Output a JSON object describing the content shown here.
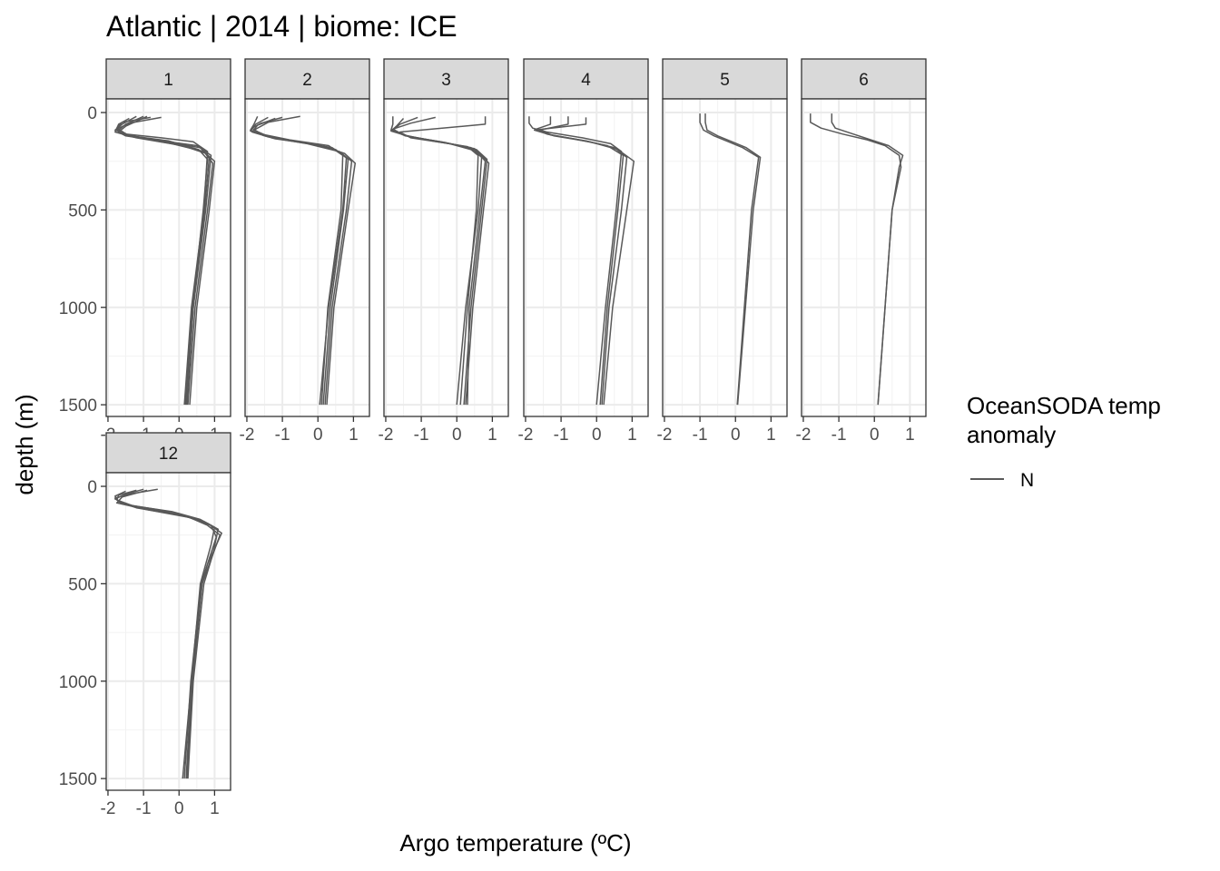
{
  "chart_data": {
    "type": "line",
    "title": "Atlantic | 2014 | biome: ICE",
    "xlabel": "Argo temperature (ºC)",
    "ylabel": "depth (m)",
    "xlim": [
      -2.05,
      1.45
    ],
    "ylim": [
      1560,
      -70
    ],
    "x_ticks": [
      -2,
      -1,
      0,
      1
    ],
    "x_tick_labels": [
      "-2",
      "-1",
      "0",
      "1"
    ],
    "y_ticks": [
      0,
      500,
      1000,
      1500
    ],
    "y_tick_labels": [
      "0",
      "500",
      "1000",
      "1500"
    ],
    "facet_labels": [
      "1",
      "2",
      "3",
      "4",
      "5",
      "6",
      "12"
    ],
    "legend": {
      "title_lines": [
        "OceanSODA temp",
        "anomaly"
      ],
      "entries": [
        "N"
      ],
      "color": "#595959",
      "placement": "right"
    },
    "grid": true,
    "panels": [
      {
        "label": "1",
        "series": [
          {
            "depth": [
              20,
              60,
              90,
              110,
              130,
              150,
              200,
              500,
              1000,
              1500
            ],
            "temp": [
              -1.2,
              -1.6,
              -1.8,
              -1.5,
              -0.5,
              0.4,
              0.8,
              0.7,
              0.35,
              0.15
            ]
          },
          {
            "depth": [
              20,
              60,
              90,
              110,
              140,
              170,
              220,
              500,
              1000,
              1500
            ],
            "temp": [
              -1.0,
              -1.5,
              -1.7,
              -1.6,
              -0.7,
              0.5,
              0.9,
              0.75,
              0.4,
              0.2
            ]
          },
          {
            "depth": [
              25,
              50,
              80,
              120,
              160,
              200,
              260,
              500,
              1000,
              1500
            ],
            "temp": [
              -0.8,
              -1.6,
              -1.75,
              -1.4,
              -0.2,
              0.7,
              0.95,
              0.8,
              0.45,
              0.25
            ]
          },
          {
            "depth": [
              30,
              60,
              100,
              130,
              170,
              210,
              250,
              500,
              1000,
              1500
            ],
            "temp": [
              -1.4,
              -1.7,
              -1.8,
              -1.2,
              0.1,
              0.75,
              1.0,
              0.85,
              0.5,
              0.3
            ]
          },
          {
            "depth": [
              20,
              70,
              100,
              120,
              150,
              180,
              230,
              500,
              1000,
              1500
            ],
            "temp": [
              -0.9,
              -1.5,
              -1.7,
              -1.5,
              -0.4,
              0.6,
              0.85,
              0.72,
              0.4,
              0.22
            ]
          },
          {
            "depth": [
              25,
              55,
              85,
              115,
              145,
              190,
              240,
              500,
              1000,
              1500
            ],
            "temp": [
              -0.5,
              -1.4,
              -1.75,
              -1.55,
              -0.3,
              0.55,
              0.8,
              0.68,
              0.38,
              0.18
            ]
          }
        ]
      },
      {
        "label": "2",
        "series": [
          {
            "depth": [
              20,
              60,
              90,
              120,
              150,
              180,
              230,
              500,
              1000,
              1500
            ],
            "temp": [
              -1.7,
              -1.8,
              -1.9,
              -1.5,
              -0.6,
              0.4,
              0.8,
              0.7,
              0.3,
              0.05
            ]
          },
          {
            "depth": [
              25,
              55,
              80,
              110,
              140,
              170,
              220,
              500,
              1000,
              1500
            ],
            "temp": [
              -1.0,
              -1.6,
              -1.85,
              -1.6,
              -0.8,
              0.3,
              0.7,
              0.65,
              0.28,
              0.1
            ]
          },
          {
            "depth": [
              20,
              50,
              90,
              130,
              160,
              200,
              250,
              500,
              1000,
              1500
            ],
            "temp": [
              -0.5,
              -1.4,
              -1.8,
              -1.3,
              -0.3,
              0.6,
              0.95,
              0.8,
              0.4,
              0.2
            ]
          },
          {
            "depth": [
              30,
              65,
              100,
              135,
              165,
              210,
              260,
              500,
              1000,
              1500
            ],
            "temp": [
              -1.2,
              -1.7,
              -1.85,
              -1.2,
              0.0,
              0.75,
              1.05,
              0.85,
              0.45,
              0.25
            ]
          },
          {
            "depth": [
              25,
              60,
              95,
              125,
              155,
              190,
              240,
              500,
              1000,
              1500
            ],
            "temp": [
              -1.4,
              -1.75,
              -1.9,
              -1.4,
              -0.4,
              0.5,
              0.85,
              0.72,
              0.35,
              0.15
            ]
          }
        ]
      },
      {
        "label": "3",
        "series": [
          {
            "depth": [
              20,
              60,
              90,
              120,
              150,
              180,
              230,
              500,
              1000,
              1500
            ],
            "temp": [
              -1.8,
              -1.8,
              -1.85,
              -1.4,
              -0.5,
              0.4,
              0.7,
              0.6,
              0.25,
              0.0
            ]
          },
          {
            "depth": [
              25,
              55,
              85,
              115,
              145,
              175,
              220,
              500,
              1000,
              1500
            ],
            "temp": [
              -0.6,
              -1.3,
              -1.8,
              -1.5,
              -0.7,
              0.3,
              0.6,
              0.55,
              0.3,
              0.1
            ]
          },
          {
            "depth": [
              20,
              60,
              100,
              130,
              160,
              200,
              260,
              500,
              1000,
              1500
            ],
            "temp": [
              0.8,
              0.8,
              -1.6,
              -1.3,
              -0.2,
              0.6,
              0.9,
              0.75,
              0.45,
              0.25
            ]
          },
          {
            "depth": [
              30,
              70,
              95,
              125,
              155,
              190,
              240,
              500,
              1000,
              1500
            ],
            "temp": [
              -1.5,
              -1.7,
              -1.85,
              -1.3,
              -0.3,
              0.55,
              0.85,
              0.7,
              0.4,
              0.2
            ]
          },
          {
            "depth": [
              25,
              60,
              90,
              120,
              150,
              185,
              250,
              500,
              1000,
              1500
            ],
            "temp": [
              -1.1,
              -1.6,
              -1.8,
              -1.45,
              -0.45,
              0.5,
              0.8,
              0.65,
              0.35,
              0.3
            ]
          }
        ]
      },
      {
        "label": "4",
        "series": [
          {
            "depth": [
              20,
              55,
              80,
              100,
              130,
              160,
              200,
              500,
              1000,
              1500
            ],
            "temp": [
              -1.9,
              -1.9,
              -1.8,
              -1.4,
              -0.4,
              0.4,
              0.7,
              0.55,
              0.25,
              0.0
            ]
          },
          {
            "depth": [
              20,
              60,
              85,
              110,
              140,
              170,
              220,
              500,
              1000,
              1500
            ],
            "temp": [
              -1.3,
              -1.3,
              -1.7,
              -1.4,
              -0.5,
              0.3,
              0.75,
              0.6,
              0.3,
              0.1
            ]
          },
          {
            "depth": [
              20,
              60,
              90,
              120,
              150,
              190,
              250,
              500,
              1000,
              1500
            ],
            "temp": [
              -0.8,
              -0.8,
              -1.6,
              -1.2,
              -0.2,
              0.6,
              1.05,
              0.85,
              0.45,
              0.2
            ]
          },
          {
            "depth": [
              25,
              60,
              90,
              115,
              145,
              180,
              230,
              500,
              1000,
              1500
            ],
            "temp": [
              -0.3,
              -0.3,
              -1.75,
              -1.3,
              -0.3,
              0.5,
              0.85,
              0.7,
              0.35,
              0.15
            ]
          }
        ]
      },
      {
        "label": "5",
        "series": [
          {
            "depth": [
              5,
              50,
              90,
              120,
              150,
              180,
              230,
              500,
              1000,
              1500
            ],
            "temp": [
              -1.0,
              -1.0,
              -0.9,
              -0.6,
              -0.2,
              0.2,
              0.65,
              0.45,
              0.25,
              0.05
            ]
          },
          {
            "depth": [
              5,
              50,
              90,
              120,
              150,
              180,
              230,
              500,
              1000,
              1500
            ],
            "temp": [
              -0.85,
              -0.85,
              -0.8,
              -0.5,
              -0.1,
              0.3,
              0.7,
              0.5,
              0.28,
              0.06
            ]
          }
        ]
      },
      {
        "label": "6",
        "series": [
          {
            "depth": [
              5,
              50,
              80,
              110,
              140,
              170,
              220,
              280,
              500,
              1000,
              1500
            ],
            "temp": [
              -1.8,
              -1.8,
              -1.5,
              -0.9,
              -0.2,
              0.3,
              0.7,
              0.75,
              0.5,
              0.3,
              0.1
            ]
          },
          {
            "depth": [
              5,
              50,
              80,
              110,
              140,
              170,
              220,
              280,
              500,
              1000,
              1500
            ],
            "temp": [
              -1.2,
              -1.2,
              -1.1,
              -0.6,
              -0.1,
              0.4,
              0.8,
              0.7,
              0.5,
              0.3,
              0.1
            ]
          }
        ]
      },
      {
        "label": "12",
        "series": [
          {
            "depth": [
              15,
              40,
              60,
              90,
              120,
              160,
              200,
              250,
              500,
              1000,
              1500
            ],
            "temp": [
              -0.6,
              -1.4,
              -1.8,
              -1.6,
              -0.6,
              0.3,
              0.8,
              1.15,
              0.65,
              0.35,
              0.1
            ]
          },
          {
            "depth": [
              20,
              45,
              70,
              100,
              130,
              170,
              210,
              300,
              500,
              1000,
              1500
            ],
            "temp": [
              -1.2,
              -1.7,
              -1.75,
              -1.3,
              -0.2,
              0.6,
              1.0,
              0.9,
              0.6,
              0.35,
              0.2
            ]
          },
          {
            "depth": [
              15,
              40,
              65,
              95,
              140,
              180,
              220,
              350,
              500,
              1000,
              1500
            ],
            "temp": [
              -1.0,
              -1.5,
              -1.8,
              -1.45,
              -0.1,
              0.7,
              1.1,
              0.95,
              0.7,
              0.4,
              0.25
            ]
          },
          {
            "depth": [
              25,
              50,
              80,
              110,
              150,
              190,
              240,
              400,
              500,
              1000,
              1500
            ],
            "temp": [
              -1.5,
              -1.8,
              -1.7,
              -1.2,
              0.1,
              0.8,
              1.2,
              0.8,
              0.65,
              0.38,
              0.22
            ]
          },
          {
            "depth": [
              20,
              55,
              85,
              120,
              160,
              200,
              260,
              500,
              1000,
              1500
            ],
            "temp": [
              -0.9,
              -1.6,
              -1.75,
              -0.9,
              0.3,
              0.9,
              1.05,
              0.62,
              0.33,
              0.15
            ]
          }
        ]
      }
    ]
  }
}
